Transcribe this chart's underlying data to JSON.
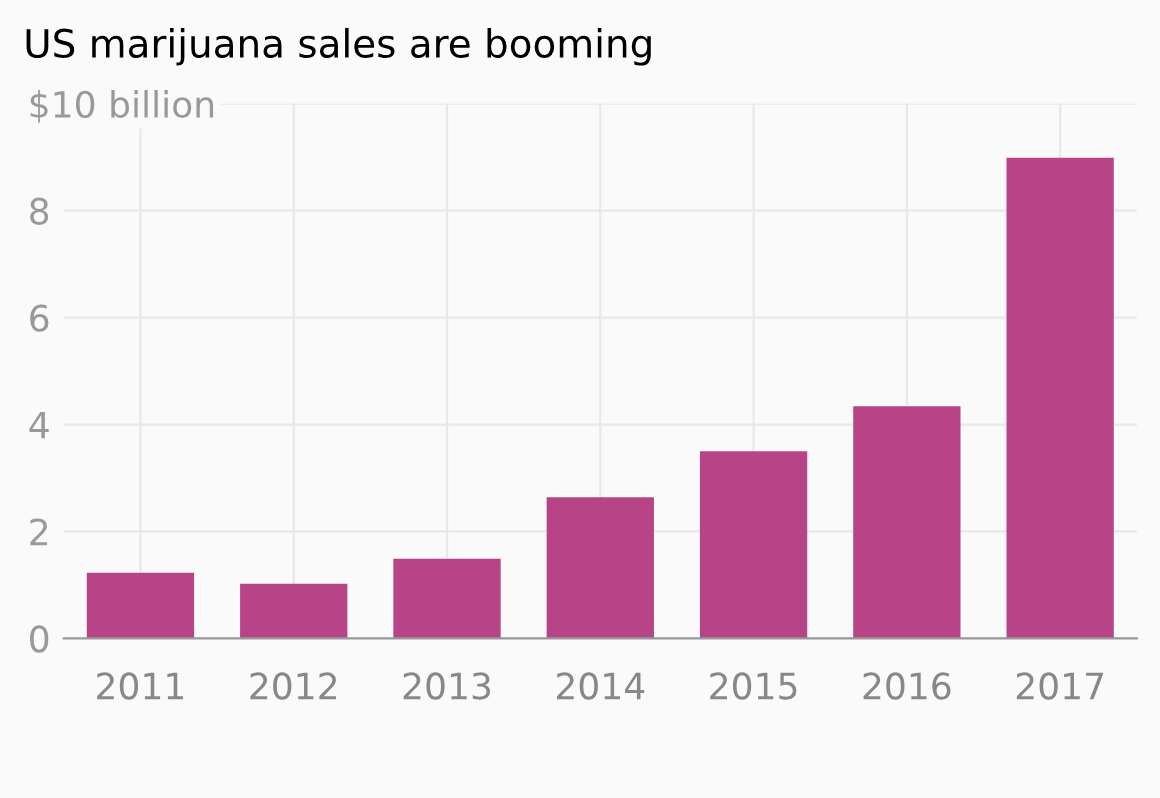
{
  "chart_data": {
    "type": "bar",
    "title": "US marijuana sales are booming",
    "categories": [
      "2011",
      "2012",
      "2013",
      "2014",
      "2015",
      "2016",
      "2017"
    ],
    "values": [
      1.23,
      1.02,
      1.49,
      2.64,
      3.5,
      4.34,
      8.99
    ],
    "color": "#b64486",
    "ylim": [
      0,
      10
    ],
    "yticks": [
      0,
      2,
      4,
      6,
      8,
      {
        "value": 10,
        "label": "$10 billion"
      }
    ],
    "grid": true
  }
}
